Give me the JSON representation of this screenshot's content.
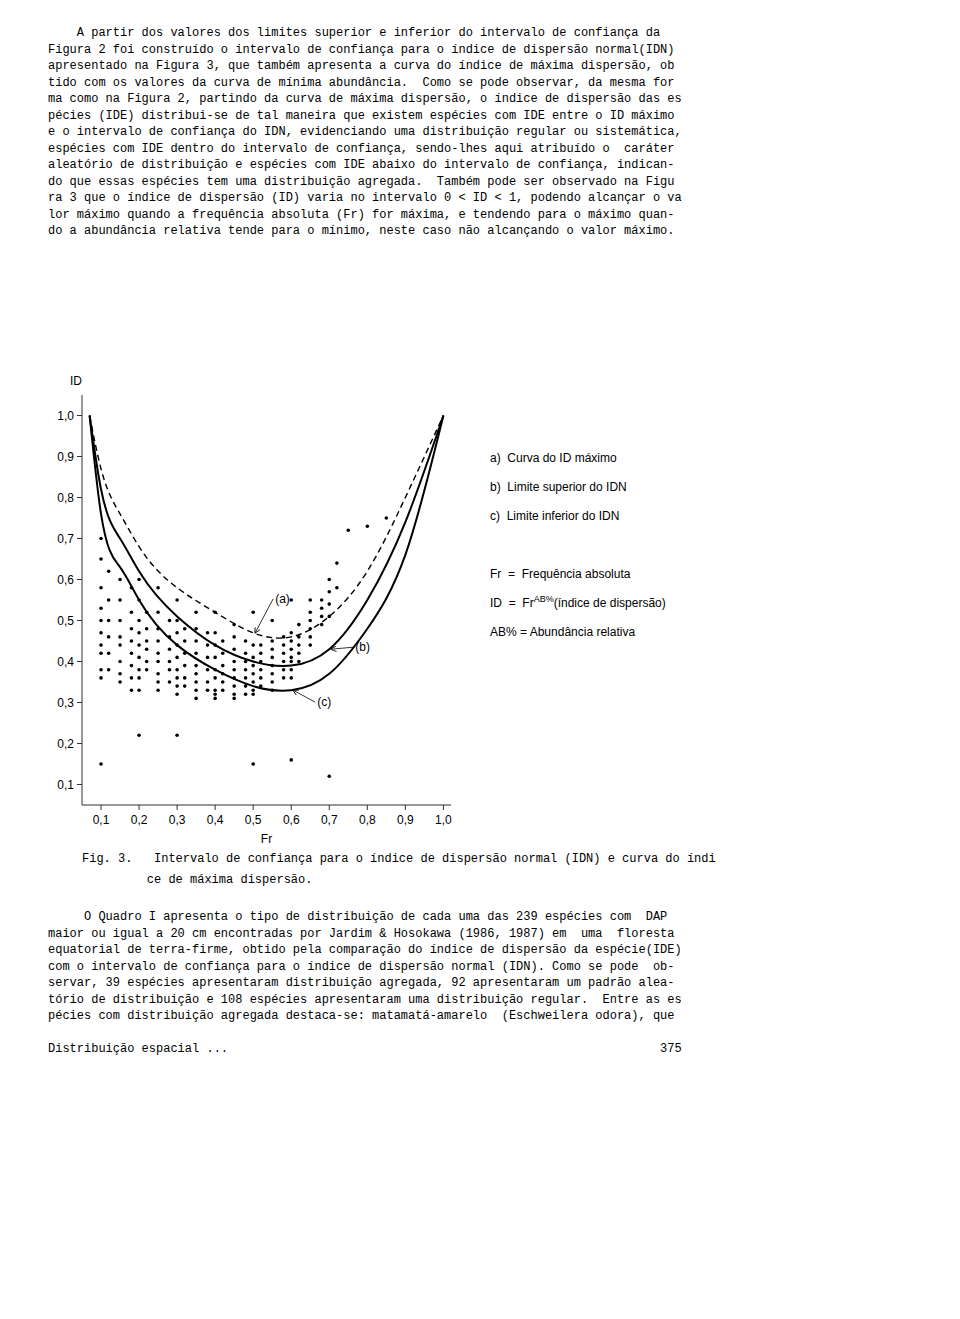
{
  "chart_data": {
    "type": "scatter",
    "xlabel": "Fr",
    "ylabel": "ID",
    "xlim": [
      0.05,
      1.02
    ],
    "ylim": [
      0.05,
      1.05
    ],
    "xticks": [
      {
        "value": 0.1,
        "label": "0,1"
      },
      {
        "value": 0.2,
        "label": "0,2"
      },
      {
        "value": 0.3,
        "label": "0,3"
      },
      {
        "value": 0.4,
        "label": "0,4"
      },
      {
        "value": 0.5,
        "label": "0,5"
      },
      {
        "value": 0.6,
        "label": "0,6"
      },
      {
        "value": 0.7,
        "label": "0,7"
      },
      {
        "value": 0.8,
        "label": "0,8"
      },
      {
        "value": 0.9,
        "label": "0,9"
      },
      {
        "value": 1.0,
        "label": "1,0"
      }
    ],
    "yticks": [
      {
        "value": 0.1,
        "label": "0,1"
      },
      {
        "value": 0.2,
        "label": "0,2"
      },
      {
        "value": 0.3,
        "label": "0,3"
      },
      {
        "value": 0.4,
        "label": "0,4"
      },
      {
        "value": 0.5,
        "label": "0,5"
      },
      {
        "value": 0.6,
        "label": "0,6"
      },
      {
        "value": 0.7,
        "label": "0,7"
      },
      {
        "value": 0.8,
        "label": "0,8"
      },
      {
        "value": 0.9,
        "label": "0,9"
      },
      {
        "value": 1.0,
        "label": "1,0"
      }
    ],
    "series": [
      {
        "type": "scatter",
        "color": "#000000",
        "marker": "dot",
        "x": [
          0.1,
          0.1,
          0.1,
          0.1,
          0.1,
          0.1,
          0.1,
          0.1,
          0.1,
          0.1,
          0.12,
          0.12,
          0.12,
          0.12,
          0.12,
          0.12,
          0.15,
          0.15,
          0.15,
          0.15,
          0.15,
          0.15,
          0.15,
          0.15,
          0.18,
          0.18,
          0.18,
          0.18,
          0.18,
          0.18,
          0.18,
          0.18,
          0.2,
          0.2,
          0.2,
          0.2,
          0.2,
          0.2,
          0.2,
          0.2,
          0.22,
          0.22,
          0.22,
          0.22,
          0.22,
          0.22,
          0.25,
          0.25,
          0.25,
          0.25,
          0.25,
          0.25,
          0.25,
          0.25,
          0.28,
          0.28,
          0.28,
          0.28,
          0.28,
          0.28,
          0.3,
          0.3,
          0.3,
          0.3,
          0.3,
          0.3,
          0.3,
          0.3,
          0.32,
          0.32,
          0.32,
          0.32,
          0.32,
          0.32,
          0.35,
          0.35,
          0.35,
          0.35,
          0.35,
          0.35,
          0.35,
          0.35,
          0.38,
          0.38,
          0.38,
          0.38,
          0.38,
          0.38,
          0.4,
          0.4,
          0.4,
          0.4,
          0.4,
          0.4,
          0.4,
          0.4,
          0.42,
          0.42,
          0.42,
          0.42,
          0.42,
          0.42,
          0.45,
          0.45,
          0.45,
          0.45,
          0.45,
          0.45,
          0.45,
          0.45,
          0.48,
          0.48,
          0.48,
          0.48,
          0.48,
          0.48,
          0.48,
          0.5,
          0.5,
          0.5,
          0.5,
          0.5,
          0.5,
          0.5,
          0.52,
          0.52,
          0.52,
          0.52,
          0.52,
          0.52,
          0.55,
          0.55,
          0.55,
          0.55,
          0.55,
          0.55,
          0.55,
          0.58,
          0.58,
          0.58,
          0.58,
          0.58,
          0.58,
          0.6,
          0.6,
          0.6,
          0.6,
          0.6,
          0.6,
          0.6,
          0.62,
          0.62,
          0.62,
          0.62,
          0.62,
          0.65,
          0.65,
          0.65,
          0.65,
          0.65,
          0.68,
          0.68,
          0.68,
          0.68,
          0.7,
          0.7,
          0.7,
          0.7,
          0.72,
          0.72,
          0.75,
          0.8,
          0.85,
          0.3,
          0.4,
          0.5,
          0.6,
          0.2,
          0.25,
          0.35,
          0.45,
          0.55,
          0.65,
          0.1,
          0.2,
          0.3,
          0.5,
          0.6,
          0.7
        ],
        "values": [
          0.7,
          0.65,
          0.58,
          0.53,
          0.5,
          0.47,
          0.44,
          0.42,
          0.38,
          0.36,
          0.62,
          0.55,
          0.5,
          0.46,
          0.42,
          0.38,
          0.6,
          0.55,
          0.5,
          0.46,
          0.44,
          0.4,
          0.37,
          0.35,
          0.58,
          0.52,
          0.48,
          0.45,
          0.42,
          0.39,
          0.36,
          0.33,
          0.55,
          0.5,
          0.47,
          0.44,
          0.41,
          0.38,
          0.36,
          0.33,
          0.52,
          0.48,
          0.45,
          0.43,
          0.4,
          0.38,
          0.52,
          0.48,
          0.45,
          0.42,
          0.4,
          0.37,
          0.35,
          0.33,
          0.5,
          0.46,
          0.43,
          0.4,
          0.38,
          0.35,
          0.5,
          0.47,
          0.44,
          0.41,
          0.38,
          0.36,
          0.34,
          0.32,
          0.48,
          0.45,
          0.42,
          0.39,
          0.36,
          0.34,
          0.48,
          0.45,
          0.42,
          0.39,
          0.37,
          0.35,
          0.33,
          0.31,
          0.47,
          0.44,
          0.41,
          0.38,
          0.35,
          0.33,
          0.47,
          0.44,
          0.41,
          0.38,
          0.36,
          0.33,
          0.32,
          0.31,
          0.45,
          0.42,
          0.39,
          0.37,
          0.35,
          0.33,
          0.46,
          0.43,
          0.4,
          0.38,
          0.36,
          0.34,
          0.32,
          0.31,
          0.45,
          0.42,
          0.4,
          0.38,
          0.36,
          0.34,
          0.32,
          0.44,
          0.41,
          0.39,
          0.37,
          0.35,
          0.33,
          0.32,
          0.44,
          0.42,
          0.4,
          0.38,
          0.36,
          0.34,
          0.45,
          0.43,
          0.41,
          0.39,
          0.37,
          0.35,
          0.33,
          0.46,
          0.44,
          0.42,
          0.4,
          0.38,
          0.36,
          0.47,
          0.45,
          0.43,
          0.41,
          0.4,
          0.38,
          0.36,
          0.49,
          0.46,
          0.44,
          0.42,
          0.4,
          0.52,
          0.5,
          0.48,
          0.46,
          0.44,
          0.55,
          0.53,
          0.51,
          0.49,
          0.6,
          0.57,
          0.54,
          0.51,
          0.64,
          0.58,
          0.72,
          0.73,
          0.75,
          0.55,
          0.52,
          0.52,
          0.55,
          0.6,
          0.58,
          0.52,
          0.49,
          0.5,
          0.55,
          0.15,
          0.22,
          0.22,
          0.15,
          0.16,
          0.12
        ]
      },
      {
        "type": "line",
        "name": "(a)",
        "line_style": "dashed",
        "color": "#000000",
        "x": [
          0.07,
          0.1,
          0.15,
          0.2,
          0.3,
          0.4,
          0.5,
          0.6,
          0.7,
          0.8,
          0.9,
          1.0
        ],
        "values": [
          1.0,
          0.87,
          0.76,
          0.68,
          0.58,
          0.52,
          0.47,
          0.46,
          0.51,
          0.62,
          0.8,
          1.0
        ]
      },
      {
        "type": "line",
        "name": "(b)",
        "line_style": "solid",
        "color": "#000000",
        "x": [
          0.07,
          0.1,
          0.15,
          0.2,
          0.3,
          0.4,
          0.5,
          0.6,
          0.7,
          0.8,
          0.9,
          1.0
        ],
        "values": [
          1.0,
          0.82,
          0.7,
          0.62,
          0.51,
          0.44,
          0.4,
          0.39,
          0.43,
          0.55,
          0.74,
          1.0
        ]
      },
      {
        "type": "line",
        "name": "(c)",
        "line_style": "solid",
        "color": "#000000",
        "x": [
          0.07,
          0.1,
          0.15,
          0.2,
          0.3,
          0.4,
          0.5,
          0.6,
          0.7,
          0.8,
          0.9,
          1.0
        ],
        "values": [
          1.0,
          0.76,
          0.63,
          0.55,
          0.44,
          0.38,
          0.34,
          0.33,
          0.37,
          0.48,
          0.66,
          1.0
        ]
      }
    ],
    "key": [
      "a)  Curva do ID máximo",
      "b)  Limite superior do IDN",
      "c)  Limite inferior do IDN"
    ],
    "key_terms": [
      "Fr  =  Frequência absoluta",
      {
        "text": "ID  =  Fr",
        "superscript": "AB%",
        "after": "(índice de dispersão)"
      },
      "AB% = Abundância relativa"
    ],
    "caption": [
      "Fig. 3.   Intervalo de confiança para o índice de dispersão normal (IDN) e curva do índi",
      "         ce de máxima dispersão."
    ],
    "text_above": [
      "    A partir dos valores dos limites superior e inferior do intervalo de confiança da",
      "Figura 2 foi construído o intervalo de confiança para o índice de dispersão normal(IDN)",
      "apresentado na Figura 3, que também apresenta a curva do índice de máxima dispersão, ob",
      "tido com os valores da curva de mínima abundância.  Como se pode observar, da mesma for",
      "ma como na Figura 2, partindo da curva de máxima dispersão, o índice de dispersão das es",
      "pécies (IDE) distribui-se de tal maneira que existem espécies com IDE entre o ID máximo",
      "e o intervalo de confiança do IDN, evidenciando uma distribuição regular ou sistemática,",
      "espécies com IDE dentro do intervalo de confiança, sendo-lhes aqui atribuído o  caráter",
      "aleatório de distribuição e espécies com IDE abaixo do intervalo de confiança, indican-",
      "do que essas espécies tem uma distribuição agregada.  Também pode ser observado na Figu",
      "ra 3 que o índice de dispersão (ID) varia no intervalo 0 < ID < 1, podendo alcançar o va",
      "lor máximo quando a frequência absoluta (Fr) for máxima, e tendendo para o máximo quan-",
      "do a abundância relativa tende para o mínimo, neste caso não alcançando o valor máximo."
    ],
    "text_below": [
      "     O Quadro I apresenta o tipo de distribuição de cada uma das 239 espécies com  DAP",
      "maior ou igual a 20 cm encontradas por Jardim & Hosokawa (1986, 1987) em  uma  floresta",
      "equatorial de terra-firme, obtido pela comparação do índice de dispersão da espécie(IDE)",
      "com o intervalo de confiança para o índice de dispersão normal (IDN). Como se pode  ob-",
      "servar, 39 espécies apresentaram distribuição agregada, 92 apresentaram um padrão alea-",
      "tório de distribuição e 108 espécies apresentaram uma distribuição regular.  Entre as es",
      "pécies com distribuição agregada destaca-se: matamatá-amarelo  (Eschweilera odora), que"
    ],
    "footer": "Distribuição espacial ...                                                            375"
  }
}
